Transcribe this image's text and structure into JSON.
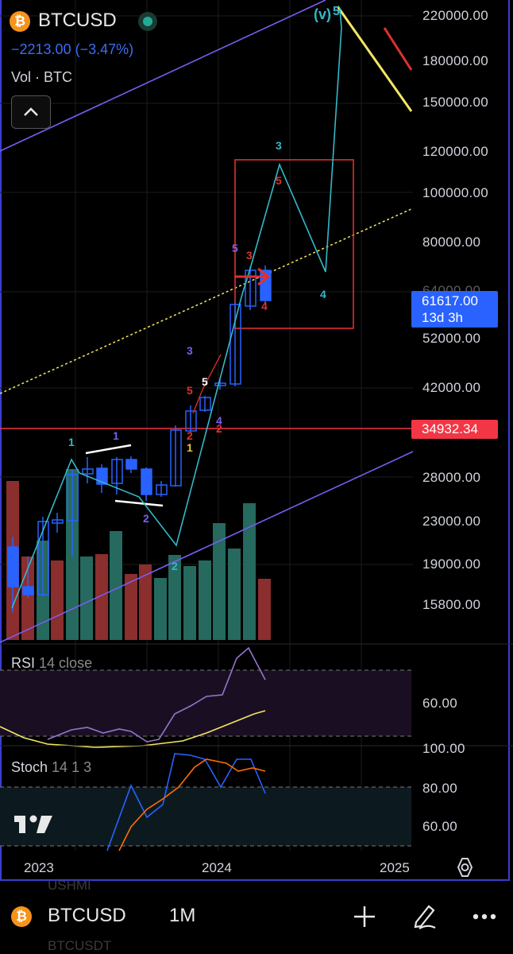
{
  "header": {
    "coin_glyph": "₿",
    "symbol": "BTCUSD",
    "change": "−2213.00 (−3.47%)",
    "volume_label": "Vol · BTC",
    "collapse_icon": "chevron-up-icon"
  },
  "price_axis": {
    "ticks": [
      "220000.00",
      "180000.00",
      "150000.00",
      "120000.00",
      "100000.00",
      "80000.00",
      "52000.00",
      "42000.00",
      "28000.00",
      "23000.00",
      "19000.00",
      "15800.00"
    ],
    "partial_tick": "64000.00"
  },
  "current_price": {
    "price": "61617.00",
    "countdown": "13d 3h",
    "color": "#2962ff"
  },
  "horizontal_line": {
    "price": "34932.34",
    "color": "#f23645"
  },
  "rsi": {
    "label": "RSI",
    "params": "14 close",
    "axis_tick": "60.00"
  },
  "stoch": {
    "label": "Stoch",
    "params": "14 1 3",
    "axis_ticks": [
      "100.00",
      "80.00",
      "60.00"
    ]
  },
  "time_axis": {
    "ticks": [
      "2023",
      "2024",
      "2025"
    ]
  },
  "wave_labels": {
    "v": "(v)",
    "five": "5",
    "three": "3",
    "four": "4",
    "two": "2",
    "one": "1"
  },
  "bottom_bar": {
    "symbol": "BTCUSD",
    "interval": "1M",
    "add_icon": "plus-icon",
    "draw_icon": "pen-icon",
    "more_icon": "more-horizontal-icon",
    "ghost_top": "USHMI",
    "ghost_bottom": "BTCUSDT"
  },
  "logo": "tradingview-logo",
  "settings_icon": "settings-icon",
  "colors": {
    "up": "#2962ff",
    "down": "#2962ff",
    "vol_up": "#26695e",
    "vol_down": "#8a2e2e",
    "wave_cyan": "#35b8c9",
    "channel": "#7b5cf0"
  }
}
